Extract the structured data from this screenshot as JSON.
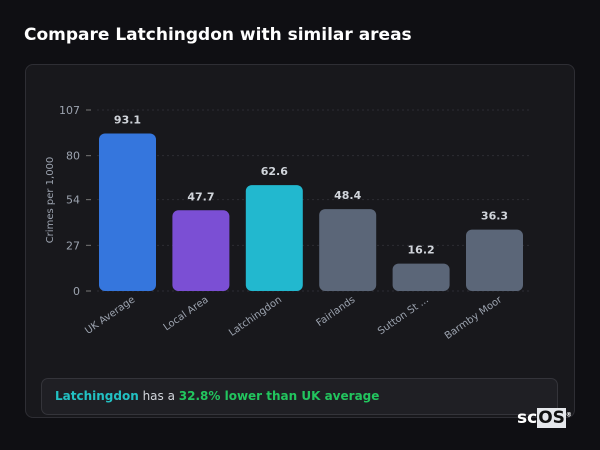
{
  "title": "Compare Latchingdon with similar areas",
  "chart_data": {
    "type": "bar",
    "categories": [
      "UK Average",
      "Local Area",
      "Latchingdon",
      "Fairlands",
      "Sutton St ...",
      "Barmby Moor"
    ],
    "values": [
      93.1,
      47.7,
      62.6,
      48.4,
      16.2,
      36.3
    ],
    "colors": [
      "#3576dd",
      "#7b4fd4",
      "#22b8cf",
      "#5b6678",
      "#5b6678",
      "#5b6678"
    ],
    "ylabel": "Crimes per 1,000",
    "yticks": [
      0,
      27,
      54,
      80,
      107
    ],
    "ylim": [
      0,
      107
    ],
    "grid": true
  },
  "summary": {
    "area": "Latchingdon",
    "middle": " has a ",
    "comparison": "32.8% lower than UK average",
    "area_color": "#22c1c3",
    "comparison_color": "#22c55e"
  },
  "logo": {
    "text_a": "sc",
    "text_b": "OS",
    "mark": "®"
  }
}
